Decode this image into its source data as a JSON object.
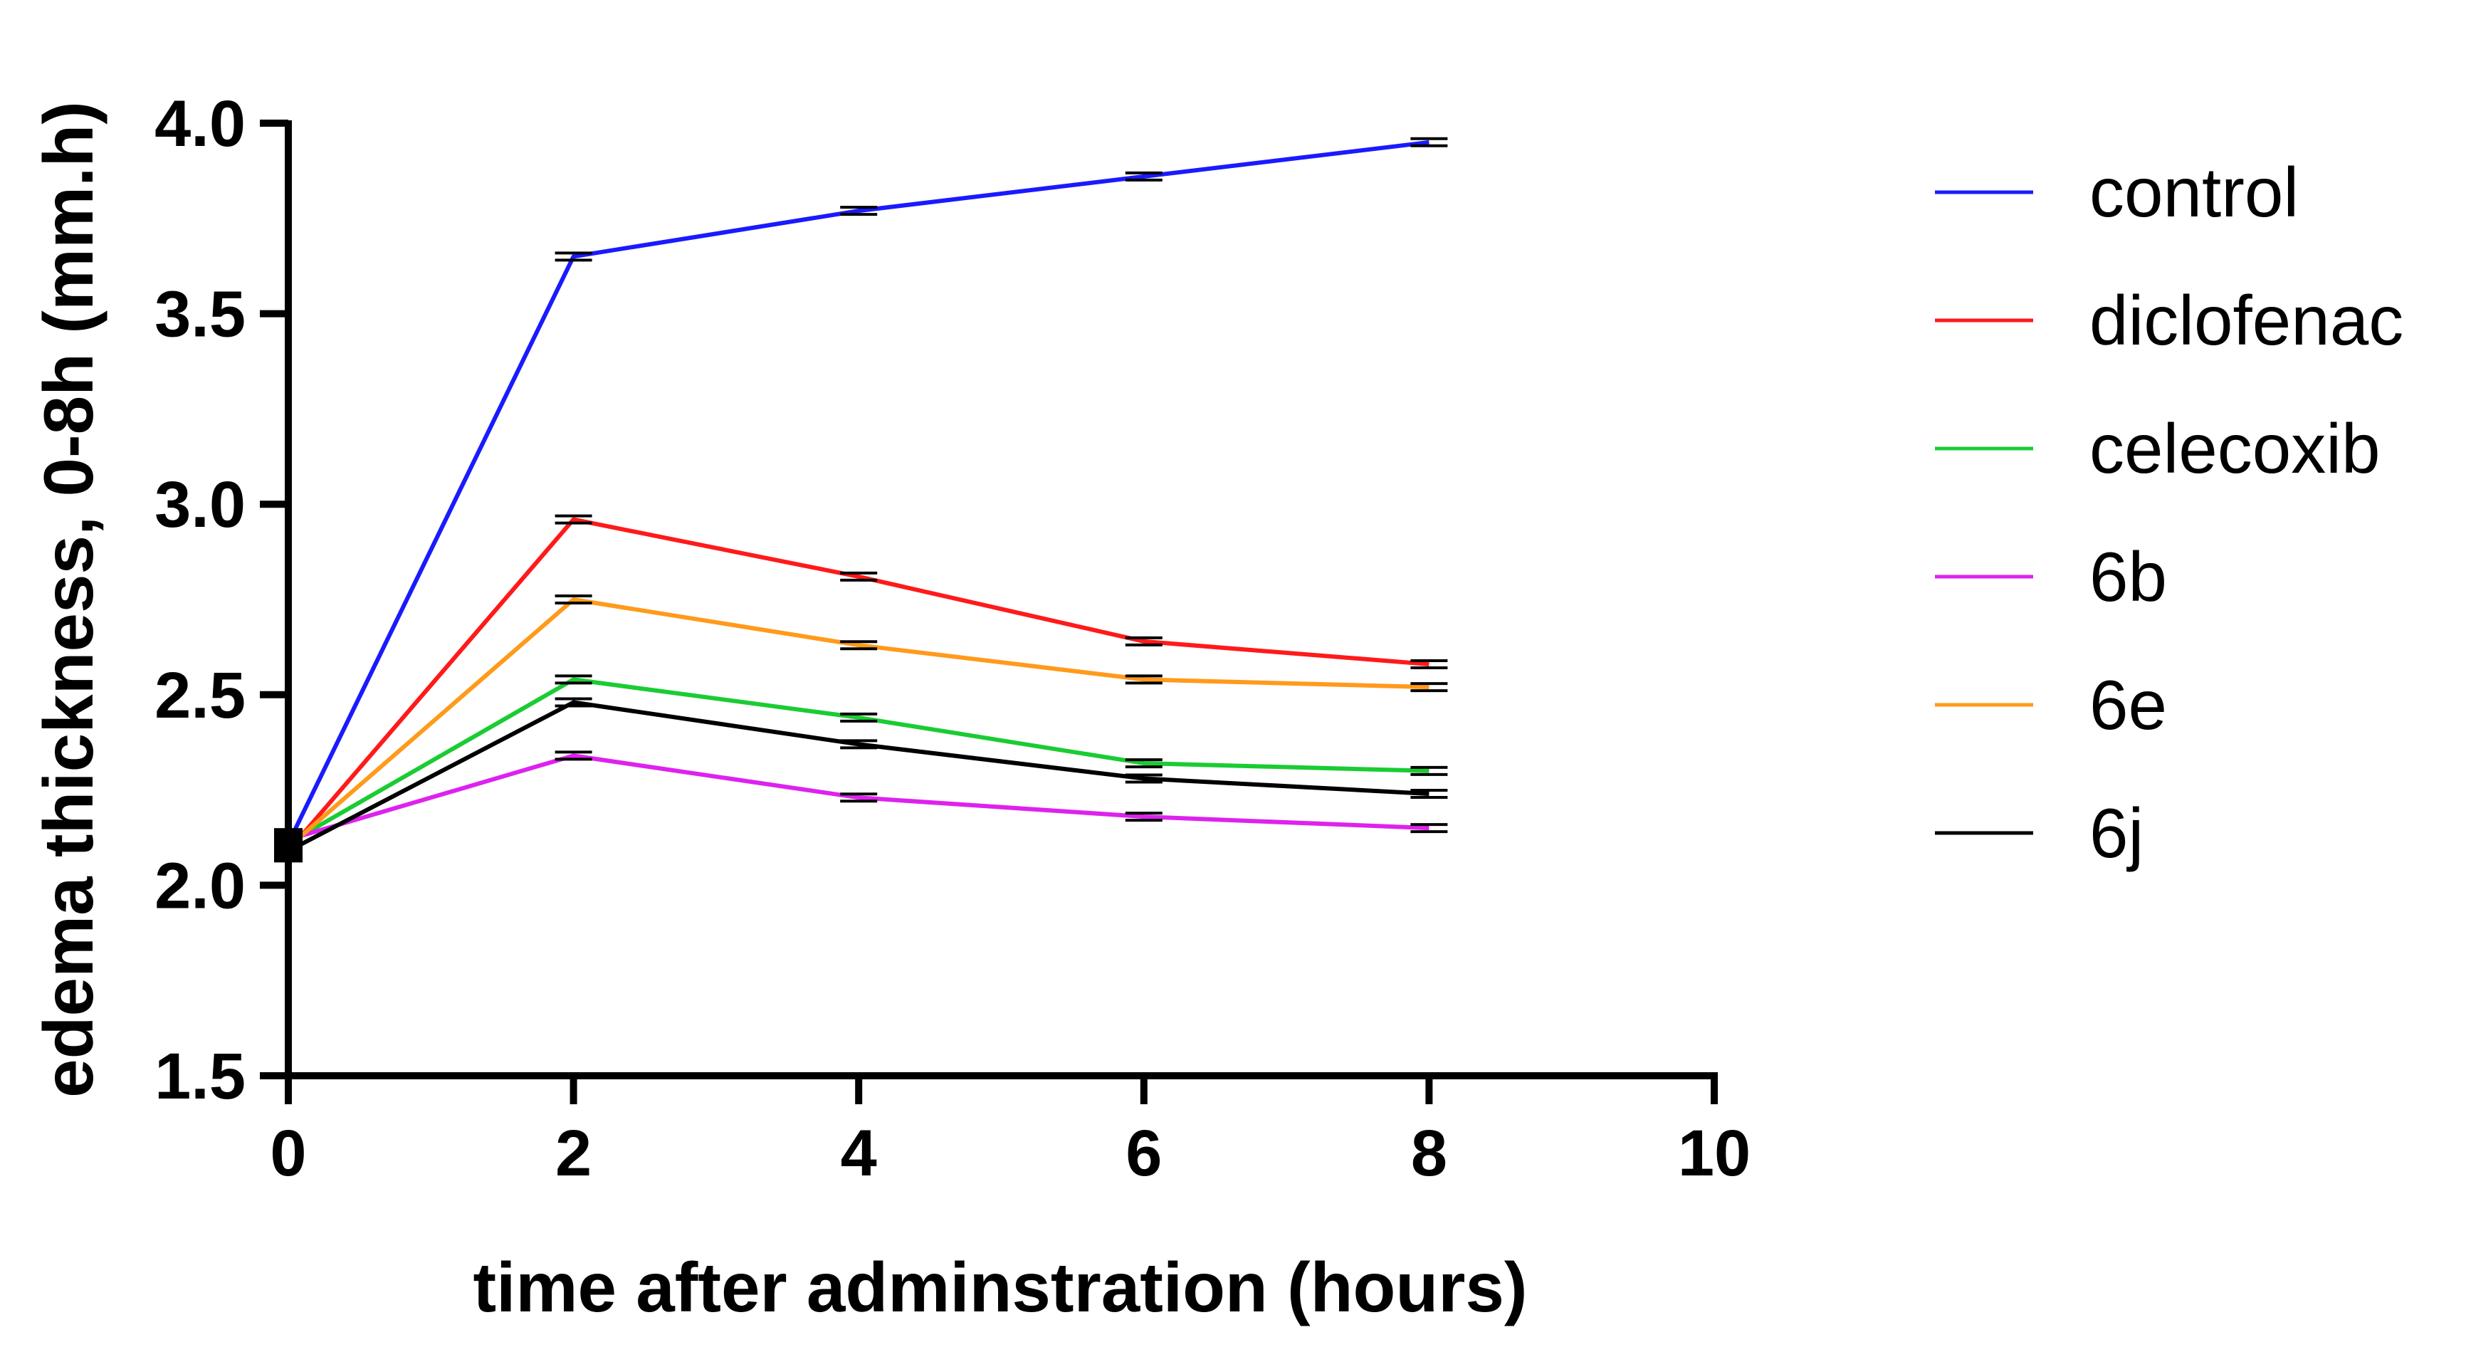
{
  "chart_data": {
    "type": "line",
    "title": "",
    "xlabel": "time after adminstration (hours)",
    "ylabel": "edema thickness, 0-8h (mm.h)",
    "xlim": [
      0,
      10
    ],
    "ylim": [
      1.5,
      4.0
    ],
    "xticks": [
      "0",
      "2",
      "4",
      "6",
      "8",
      "10"
    ],
    "yticks": [
      "1.5",
      "2.0",
      "2.5",
      "3.0",
      "3.5",
      "4.0"
    ],
    "x": [
      0,
      2,
      4,
      6,
      8
    ],
    "legend_position": "right",
    "grid": false,
    "error_bars": true,
    "series": [
      {
        "name": "control",
        "color": "#1a1aff",
        "values": [
          2.11,
          3.65,
          3.77,
          3.86,
          3.95
        ]
      },
      {
        "name": "diclofenac",
        "color": "#ff1a1a",
        "values": [
          2.09,
          2.96,
          2.81,
          2.64,
          2.58
        ]
      },
      {
        "name": "celecoxib",
        "color": "#1acc33",
        "values": [
          2.11,
          2.54,
          2.44,
          2.32,
          2.3
        ]
      },
      {
        "name": "6b",
        "color": "#dd22ee",
        "values": [
          2.12,
          2.34,
          2.23,
          2.18,
          2.15
        ]
      },
      {
        "name": "6e",
        "color": "#ff9a1a",
        "values": [
          2.1,
          2.75,
          2.63,
          2.54,
          2.52
        ]
      },
      {
        "name": "6j",
        "color": "#000000",
        "values": [
          2.09,
          2.48,
          2.37,
          2.28,
          2.24
        ]
      }
    ]
  }
}
